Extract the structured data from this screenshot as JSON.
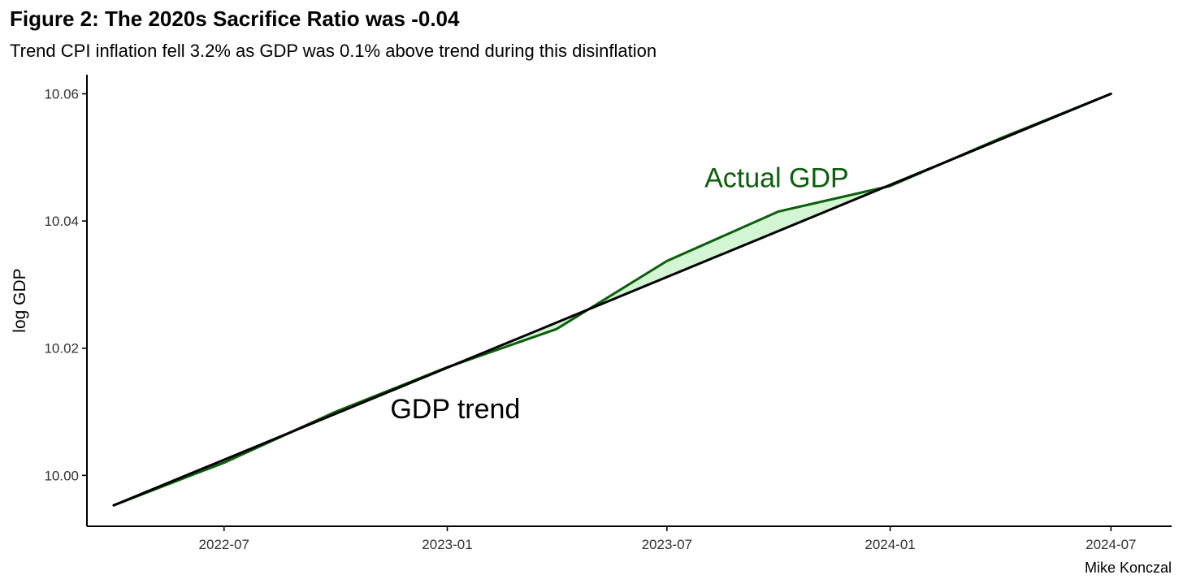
{
  "header": {
    "title": "Figure 2: The 2020s Sacrifice Ratio was -0.04",
    "subtitle": "Trend CPI inflation fell 3.2% as GDP was 0.1% above trend during this disinflation"
  },
  "caption": "Mike Konczal",
  "colors": {
    "actual_line": "#0b5e0b",
    "fill_between": "#d3f5d3",
    "trend_line": "#000000",
    "axis": "#000000",
    "tick_text": "#333333"
  },
  "chart_data": {
    "type": "line",
    "title": "Figure 2: The 2020s Sacrifice Ratio was -0.04",
    "subtitle": "Trend CPI inflation fell 3.2% as GDP was 0.1% above trend during this disinflation",
    "xlabel": "",
    "ylabel": "log GDP",
    "x_ticks": [
      "2022-07",
      "2023-01",
      "2023-07",
      "2024-01",
      "2024-07"
    ],
    "y_ticks": [
      "10.00",
      "10.02",
      "10.04",
      "10.06"
    ],
    "xlim": [
      "2022-03-10",
      "2024-08-20"
    ],
    "ylim": [
      9.992,
      10.063
    ],
    "grid": false,
    "legend": "none",
    "series": [
      {
        "name": "Actual GDP",
        "x": [
          "2022-04-01",
          "2022-07-01",
          "2022-10-01",
          "2023-01-01",
          "2023-04-01",
          "2023-07-01",
          "2023-10-01",
          "2024-01-01",
          "2024-04-01",
          "2024-07-01"
        ],
        "values": [
          9.9953,
          10.002,
          10.01,
          10.017,
          10.023,
          10.0337,
          10.0415,
          10.0455,
          10.053,
          10.06
        ]
      },
      {
        "name": "GDP trend",
        "x": [
          "2022-04-01",
          "2024-07-01"
        ],
        "values": [
          9.9953,
          10.06
        ]
      }
    ],
    "annotations": [
      {
        "text": "Actual GDP",
        "x": "2023-08-01",
        "y": 10.0453
      },
      {
        "text": "GDP trend",
        "x": "2022-11-15",
        "y": 10.009
      }
    ]
  }
}
